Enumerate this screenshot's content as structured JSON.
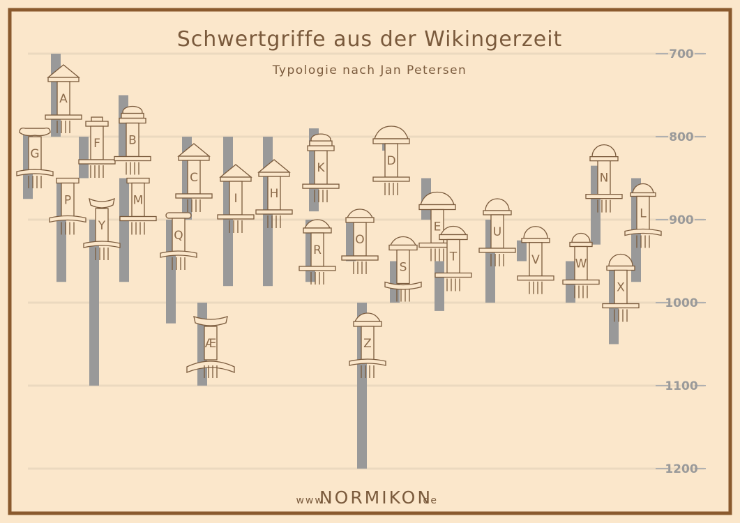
{
  "chart_data": {
    "type": "range",
    "title": "Schwertgriffe aus der Wikingerzeit",
    "subtitle": "Typologie nach Jan Petersen",
    "y_ticks": [
      700,
      800,
      900,
      1000,
      1100,
      1200
    ],
    "ylim": [
      680,
      1220
    ],
    "y_inverted": true,
    "colors": {
      "bar": "#999999",
      "background": "#fbe7cb",
      "ink": "#7a5a3c",
      "grid": "#ebd9bf"
    },
    "types": [
      {
        "label": "G",
        "start": 795,
        "end": 875,
        "pommel": "volute",
        "guard": "volute-curved"
      },
      {
        "label": "A",
        "start": 700,
        "end": 800,
        "pommel": "triangle",
        "guard": "straight"
      },
      {
        "label": "P",
        "start": 850,
        "end": 975,
        "pommel": "bar",
        "guard": "curved-down"
      },
      {
        "label": "F",
        "start": 800,
        "end": 850,
        "pommel": "cap",
        "guard": "straight"
      },
      {
        "label": "Y",
        "start": 900,
        "end": 1100,
        "pommel": "curved",
        "guard": "curved-down"
      },
      {
        "label": "B",
        "start": 750,
        "end": 825,
        "pommel": "tiered",
        "guard": "straight"
      },
      {
        "label": "M",
        "start": 850,
        "end": 975,
        "pommel": "bar",
        "guard": "straight"
      },
      {
        "label": "Q",
        "start": 900,
        "end": 1025,
        "pommel": "rounded-bar",
        "guard": "curved-down"
      },
      {
        "label": "C",
        "start": 800,
        "end": 900,
        "pommel": "triangle",
        "guard": "straight"
      },
      {
        "label": "Æ",
        "start": 1000,
        "end": 1100,
        "pommel": "curved-big",
        "guard": "curved-big"
      },
      {
        "label": "I",
        "start": 800,
        "end": 980,
        "pommel": "triangle",
        "guard": "straight"
      },
      {
        "label": "H",
        "start": 800,
        "end": 980,
        "pommel": "triangle",
        "guard": "straight"
      },
      {
        "label": "K",
        "start": 790,
        "end": 890,
        "pommel": "tiered",
        "guard": "straight"
      },
      {
        "label": "R",
        "start": 900,
        "end": 975,
        "pommel": "lobed",
        "guard": "straight"
      },
      {
        "label": "O",
        "start": 900,
        "end": 950,
        "pommel": "lobed-tall",
        "guard": "straight"
      },
      {
        "label": "Z",
        "start": 1000,
        "end": 1200,
        "pommel": "lobed",
        "guard": "curved-down"
      },
      {
        "label": "D",
        "start": 800,
        "end": 800,
        "pommel": "lobed-big",
        "guard": "straight"
      },
      {
        "label": "S",
        "start": 950,
        "end": 1000,
        "pommel": "lobed",
        "guard": "curved-up"
      },
      {
        "label": "E",
        "start": 850,
        "end": 900,
        "pommel": "lobed-big",
        "guard": "straight"
      },
      {
        "label": "T",
        "start": 950,
        "end": 1010,
        "pommel": "lobed",
        "guard": "straight"
      },
      {
        "label": "U",
        "start": 900,
        "end": 1000,
        "pommel": "dome",
        "guard": "straight"
      },
      {
        "label": "V",
        "start": 925,
        "end": 950,
        "pommel": "dome",
        "guard": "straight"
      },
      {
        "label": "W",
        "start": 950,
        "end": 1000,
        "pommel": "dome-small",
        "guard": "straight"
      },
      {
        "label": "N",
        "start": 835,
        "end": 930,
        "pommel": "dome-plain",
        "guard": "straight"
      },
      {
        "label": "X",
        "start": 950,
        "end": 1050,
        "pommel": "dome-plain",
        "guard": "straight"
      },
      {
        "label": "L",
        "start": 850,
        "end": 975,
        "pommel": "helmet",
        "guard": "curved-down"
      }
    ]
  },
  "footer": {
    "prefix": "www.",
    "brand": "NORMIKON",
    "suffix": ".de"
  }
}
